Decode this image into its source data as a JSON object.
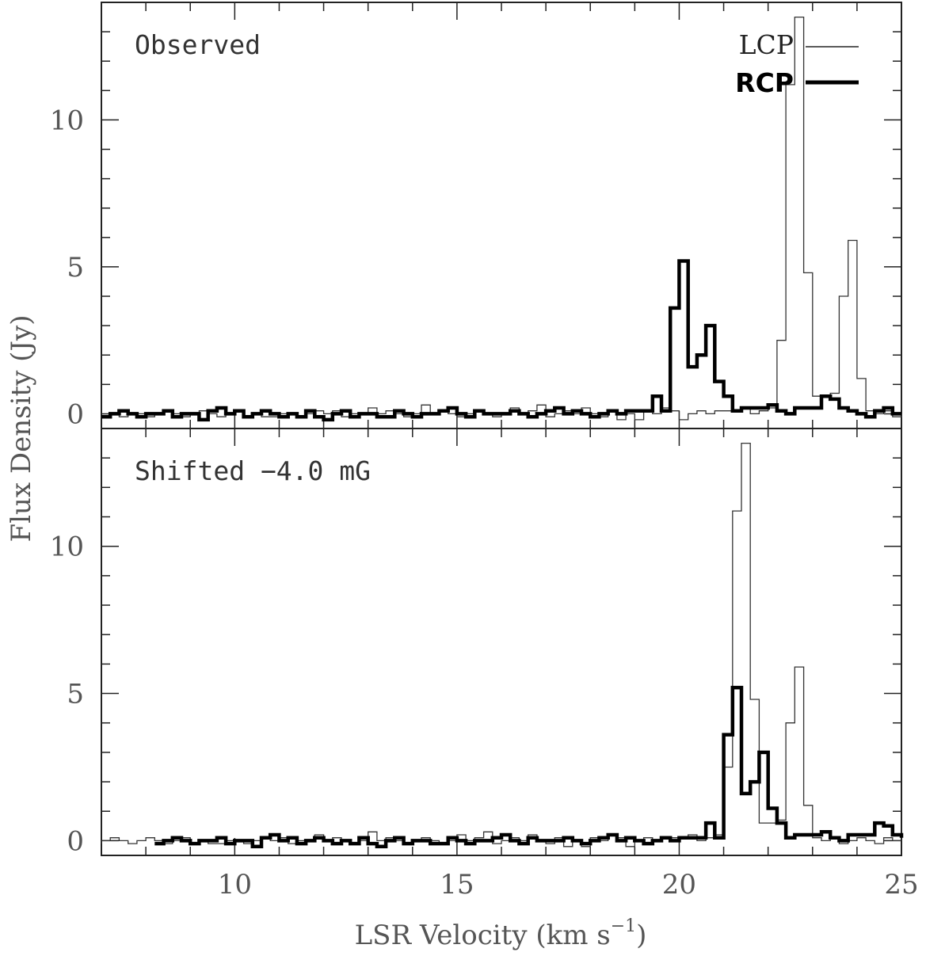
{
  "chart_data": {
    "type": "line",
    "xlabel": "LSR Velocity (km s",
    "xlabel_sup": "−1",
    "xlabel_close": ")",
    "ylabel": "Flux Density (Jy)",
    "xlim": [
      7,
      25
    ],
    "x_ticks": [
      10,
      15,
      20,
      25
    ],
    "y_ticks": [
      0,
      5,
      10
    ],
    "step_width": 0.2,
    "legend": {
      "placement": "top-right",
      "entries": [
        {
          "name": "LCP",
          "style": "thin"
        },
        {
          "name": "RCP",
          "style": "thick"
        }
      ]
    },
    "panels": [
      {
        "label": "Observed",
        "ylim": [
          -0.5,
          14
        ],
        "series": [
          {
            "name": "LCP",
            "x_start": 7.0,
            "values": [
              -0.1,
              0.0,
              -0.1,
              0.0,
              0.0,
              -0.1,
              0.0,
              0.1,
              0.0,
              -0.1,
              0.0,
              0.1,
              0.0,
              -0.1,
              0.0,
              0.1,
              -0.1,
              0.0,
              -0.1,
              -0.1,
              0.0,
              0.0,
              -0.1,
              0.0,
              0.1,
              0.0,
              0.1,
              -0.1,
              0.0,
              0.0,
              0.2,
              0.0,
              0.1,
              0.0,
              -0.1,
              0.0,
              0.3,
              0.0,
              0.1,
              0.0,
              -0.1,
              0.0,
              0.1,
              0.0,
              -0.1,
              0.0,
              0.2,
              0.0,
              0.1,
              0.3,
              -0.1,
              0.0,
              0.1,
              0.0,
              0.2,
              0.0,
              -0.1,
              0.1,
              -0.2,
              0.0,
              -0.2,
              0.1,
              0.0,
              0.2,
              0.1,
              -0.2,
              0.0,
              0.1,
              0.0,
              0.1,
              0.1,
              0.1,
              0.2,
              0.0,
              0.1,
              0.2,
              2.5,
              11.2,
              13.5,
              4.8,
              0.6,
              0.6,
              0.7,
              4.0,
              5.9,
              1.2,
              0.1,
              0.0,
              0.1,
              -0.1,
              0.0,
              0.1,
              0.0,
              -0.1,
              0.1,
              0.0,
              0.2,
              0.0,
              -0.1,
              0.1,
              0.0,
              -0.2,
              0.1,
              0.0,
              0.2,
              0.0,
              -0.1,
              0.0,
              0.1,
              0.0,
              0.2,
              0.0,
              -0.1,
              0.0,
              0.1,
              0.0,
              0.0,
              0.2,
              0.0,
              -0.1,
              0.0,
              0.1,
              0.0,
              -0.1,
              0.0,
              0.2,
              0.0,
              -0.1,
              0.1,
              0.0,
              -0.1,
              0.0,
              0.1,
              0.0,
              0.2,
              0.0,
              -0.1,
              0.0,
              0.1,
              0.0,
              -0.1,
              0.0,
              0.1,
              0.0,
              0.0,
              0.1,
              0.0,
              -0.1,
              0.1,
              0.0,
              0.1,
              0.0,
              -0.1,
              0.0,
              0.1,
              0.0
            ]
          },
          {
            "name": "RCP",
            "x_start": 7.0,
            "values": [
              -0.1,
              0.0,
              0.1,
              0.0,
              -0.1,
              0.0,
              0.0,
              0.1,
              -0.1,
              0.0,
              0.0,
              -0.2,
              0.1,
              0.2,
              0.0,
              0.1,
              -0.1,
              0.0,
              0.1,
              0.0,
              -0.1,
              0.0,
              -0.1,
              0.1,
              -0.1,
              -0.2,
              0.0,
              0.1,
              -0.1,
              0.0,
              0.0,
              -0.1,
              -0.1,
              0.1,
              0.0,
              -0.1,
              0.0,
              0.0,
              0.1,
              0.2,
              0.0,
              -0.1,
              0.1,
              0.0,
              0.0,
              0.0,
              0.1,
              0.0,
              -0.1,
              0.0,
              0.1,
              0.2,
              0.0,
              0.1,
              0.0,
              -0.1,
              0.0,
              0.1,
              0.0,
              0.1,
              0.1,
              0.1,
              0.6,
              0.1,
              3.6,
              5.2,
              1.6,
              2.0,
              3.0,
              1.1,
              0.6,
              0.1,
              0.2,
              0.2,
              0.2,
              0.3,
              0.1,
              0.0,
              0.2,
              0.2,
              0.2,
              0.6,
              0.5,
              0.2,
              0.1,
              0.0,
              -0.1,
              0.1,
              0.2,
              0.0,
              0.0,
              -0.1,
              0.1,
              0.0,
              0.1,
              0.0,
              0.1,
              0.0,
              -0.1,
              0.2,
              0.0,
              0.0,
              0.1,
              0.2,
              0.0,
              -0.1,
              0.1,
              0.2,
              0.0,
              0.1,
              0.1,
              0.0,
              -0.1,
              0.1,
              0.0,
              0.1,
              0.2,
              0.0,
              -0.1,
              0.1,
              0.0,
              -0.1,
              0.1,
              0.0,
              -0.1,
              0.1,
              0.2,
              0.1,
              0.0,
              0.0,
              -0.2,
              0.1,
              0.0,
              0.0,
              -0.1,
              0.0,
              0.1,
              0.0,
              -0.1,
              0.0,
              0.1,
              0.0,
              0.1,
              0.0,
              -0.1,
              0.0,
              0.1,
              0.0,
              0.0,
              0.0,
              0.1,
              0.0,
              0.1,
              0.0,
              -0.1,
              0.0,
              0.1,
              0.0
            ]
          }
        ]
      },
      {
        "label": "Shifted −4.0 mG",
        "ylim": [
          -0.5,
          14
        ],
        "series": [
          {
            "name": "LCP",
            "x_start": 7.0,
            "values": [
              -0.1,
              0.0,
              -0.1,
              0.0,
              0.0,
              -0.1,
              0.0,
              0.1,
              0.0,
              -0.1,
              0.0,
              0.1,
              0.0,
              -0.1,
              0.0,
              0.1,
              -0.1,
              0.0,
              -0.1,
              -0.1,
              0.0,
              0.0,
              -0.1,
              0.0,
              0.1,
              0.0,
              0.1,
              -0.1,
              0.0,
              0.0,
              0.2,
              0.0,
              0.1,
              0.0,
              -0.1,
              0.0,
              0.3,
              0.0,
              0.1,
              0.0,
              -0.1,
              0.0,
              0.1,
              0.0,
              -0.1,
              0.0,
              0.2,
              0.0,
              0.1,
              0.3,
              -0.1,
              0.0,
              0.1,
              0.0,
              0.2,
              0.0,
              -0.1,
              0.1,
              -0.2,
              0.0,
              -0.2,
              0.1,
              0.0,
              0.2,
              0.1,
              -0.2,
              0.0,
              0.1,
              0.0,
              0.1,
              0.1,
              0.1,
              0.2,
              0.0,
              0.1,
              0.2,
              2.5,
              11.2,
              13.5,
              4.8,
              0.6,
              0.6,
              0.7,
              4.0,
              5.9,
              1.2,
              0.1,
              0.0,
              0.1,
              -0.1,
              0.0,
              0.1,
              0.0,
              -0.1,
              0.1,
              0.0,
              0.2,
              0.0,
              -0.1,
              0.1,
              0.0,
              -0.2,
              0.1,
              0.0,
              0.2,
              0.0,
              -0.1,
              0.0,
              0.1,
              0.0,
              0.2,
              0.0,
              -0.1,
              0.0,
              0.1,
              0.0,
              0.0,
              0.2,
              0.0,
              -0.1,
              0.0,
              0.1,
              0.0,
              -0.1,
              0.0,
              0.2,
              0.0,
              -0.1,
              0.1,
              0.0,
              -0.1,
              0.0,
              0.1,
              0.0,
              0.2,
              0.0,
              -0.1,
              0.0,
              0.1,
              0.0,
              -0.1,
              0.0,
              0.1,
              0.0,
              0.0,
              0.1,
              0.0,
              -0.1,
              0.1,
              0.0,
              0.1,
              0.0,
              -0.1,
              0.0,
              0.1,
              0.0
            ],
            "velocity_shift": -1.2
          },
          {
            "name": "RCP",
            "x_start": 7.0,
            "values": [
              -0.1,
              0.0,
              0.1,
              0.0,
              -0.1,
              0.0,
              0.0,
              0.1,
              -0.1,
              0.0,
              0.0,
              -0.2,
              0.1,
              0.2,
              0.0,
              0.1,
              -0.1,
              0.0,
              0.1,
              0.0,
              -0.1,
              0.0,
              -0.1,
              0.1,
              -0.1,
              -0.2,
              0.0,
              0.1,
              -0.1,
              0.0,
              0.0,
              -0.1,
              -0.1,
              0.1,
              0.0,
              -0.1,
              0.0,
              0.0,
              0.1,
              0.2,
              0.0,
              -0.1,
              0.1,
              0.0,
              0.0,
              0.0,
              0.1,
              0.0,
              -0.1,
              0.0,
              0.1,
              0.2,
              0.0,
              0.1,
              0.0,
              -0.1,
              0.0,
              0.1,
              0.0,
              0.1,
              0.1,
              0.1,
              0.6,
              0.1,
              3.6,
              5.2,
              1.6,
              2.0,
              3.0,
              1.1,
              0.6,
              0.1,
              0.2,
              0.2,
              0.2,
              0.3,
              0.1,
              0.0,
              0.2,
              0.2,
              0.2,
              0.6,
              0.5,
              0.2,
              0.1,
              0.0,
              -0.1,
              0.1,
              0.2,
              0.0,
              0.0,
              -0.1,
              0.1,
              0.0,
              0.1,
              0.0,
              0.1,
              0.0,
              -0.1,
              0.2,
              0.0,
              0.0,
              0.1,
              0.2,
              0.0,
              -0.1,
              0.1,
              0.2,
              0.0,
              0.1,
              0.1,
              0.0,
              -0.1,
              0.1,
              0.0,
              0.1,
              0.2,
              0.0,
              -0.1,
              0.1,
              0.0,
              -0.1,
              0.1,
              0.0,
              -0.1,
              0.1,
              0.2,
              0.1,
              0.0,
              0.0,
              -0.2,
              0.1,
              0.0,
              0.0,
              -0.1,
              0.0,
              0.1,
              0.0,
              -0.1,
              0.0,
              0.1,
              0.0,
              0.1,
              0.0,
              -0.1,
              0.0,
              0.1,
              0.0,
              0.0,
              0.0,
              0.1,
              0.0,
              0.1,
              0.0,
              -0.1,
              0.0,
              0.1,
              0.0
            ],
            "velocity_shift": 1.2
          }
        ]
      }
    ]
  }
}
